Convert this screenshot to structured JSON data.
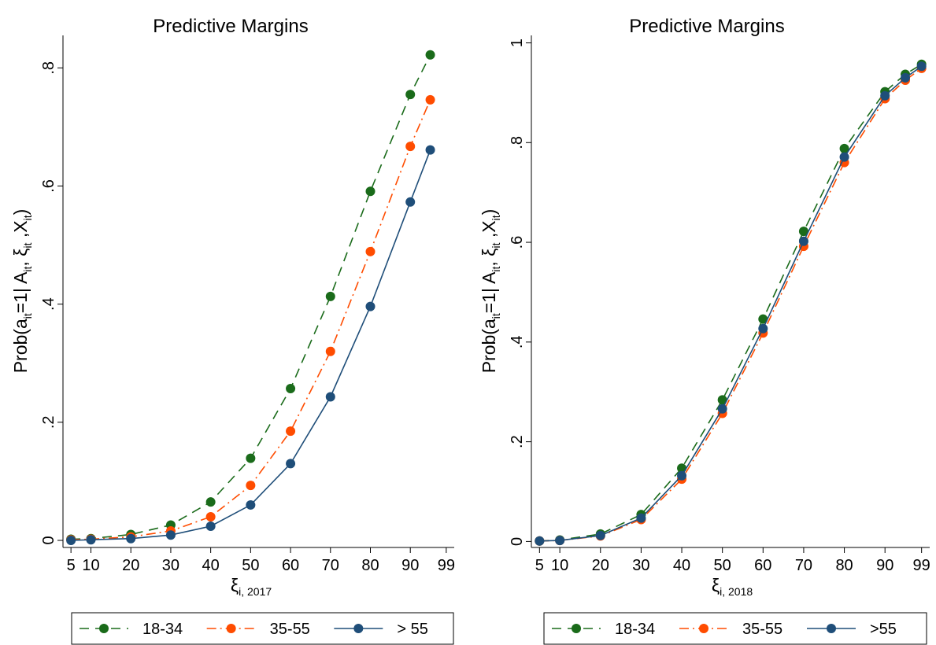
{
  "chart_data": [
    {
      "type": "line",
      "title": "Predictive Margins",
      "ylabel": {
        "main": "Prob(a",
        "sub1": "it",
        "mid1": "=1| A",
        "sub2": "it",
        "mid2": ", ξ",
        "sub3": "it",
        "mid3": " ,X",
        "sub4": "it",
        "end": ")"
      },
      "xlabel": {
        "main": "ξ",
        "sub": "i, 2017"
      },
      "x": [
        5,
        10,
        20,
        30,
        40,
        50,
        60,
        70,
        80,
        90,
        95
      ],
      "xticks": [
        "5",
        "10",
        "20",
        "30",
        "40",
        "50",
        "60",
        "70",
        "80",
        "90",
        "99"
      ],
      "xtick_values": [
        5,
        10,
        20,
        30,
        40,
        50,
        60,
        70,
        80,
        90,
        99
      ],
      "xlim": [
        3,
        101
      ],
      "yticks": [
        "0",
        ".2",
        ".4",
        ".6",
        ".8"
      ],
      "ytick_values": [
        0,
        0.2,
        0.4,
        0.6,
        0.8
      ],
      "ylim": [
        -0.012,
        0.855
      ],
      "series": [
        {
          "name": "18-34",
          "color": "#1a6b1a",
          "dash": "dash",
          "values": [
            0.002,
            0.003,
            0.01,
            0.026,
            0.065,
            0.139,
            0.257,
            0.413,
            0.591,
            0.755,
            0.822
          ]
        },
        {
          "name": "35-55",
          "color": "#ff4c00",
          "dash": "dashdot",
          "values": [
            0.001,
            0.002,
            0.006,
            0.016,
            0.04,
            0.093,
            0.185,
            0.32,
            0.489,
            0.667,
            0.746
          ]
        },
        {
          "name": "> 55",
          "color": "#1f4e79",
          "dash": "solid",
          "values": [
            0.0,
            0.001,
            0.003,
            0.009,
            0.024,
            0.06,
            0.13,
            0.243,
            0.396,
            0.573,
            0.661
          ]
        }
      ],
      "legend": "bottom"
    },
    {
      "type": "line",
      "title": "Predictive Margins",
      "ylabel": {
        "main": "Prob(a",
        "sub1": "it",
        "mid1": "=1| A",
        "sub2": "it",
        "mid2": ", ξ",
        "sub3": "it",
        "mid3": " ,X",
        "sub4": "it",
        "end": ")"
      },
      "xlabel": {
        "main": "ξ",
        "sub": "i, 2018"
      },
      "x": [
        5,
        10,
        20,
        30,
        40,
        50,
        60,
        70,
        80,
        90,
        95,
        99
      ],
      "xticks": [
        "5",
        "10",
        "20",
        "30",
        "40",
        "50",
        "60",
        "70",
        "80",
        "90",
        "99"
      ],
      "xtick_values": [
        5,
        10,
        20,
        30,
        40,
        50,
        60,
        70,
        80,
        90,
        99
      ],
      "xlim": [
        3,
        101
      ],
      "yticks": [
        "0",
        ".2",
        ".4",
        ".6",
        ".8",
        "1"
      ],
      "ytick_values": [
        0,
        0.2,
        0.4,
        0.6,
        0.8,
        1.0
      ],
      "ylim": [
        -0.012,
        1.015
      ],
      "series": [
        {
          "name": "18-34",
          "color": "#1a6b1a",
          "dash": "dash",
          "values": [
            0.001,
            0.003,
            0.015,
            0.054,
            0.147,
            0.284,
            0.446,
            0.622,
            0.788,
            0.902,
            0.937,
            0.957
          ]
        },
        {
          "name": "35-55",
          "color": "#ff4c00",
          "dash": "dashdot",
          "values": [
            0.001,
            0.002,
            0.011,
            0.044,
            0.125,
            0.257,
            0.418,
            0.592,
            0.76,
            0.888,
            0.925,
            0.949
          ]
        },
        {
          "name": ">55",
          "color": "#1f4e79",
          "dash": "solid",
          "values": [
            0.001,
            0.002,
            0.012,
            0.047,
            0.132,
            0.266,
            0.427,
            0.602,
            0.771,
            0.894,
            0.93,
            0.953
          ]
        }
      ],
      "legend": "bottom"
    }
  ]
}
